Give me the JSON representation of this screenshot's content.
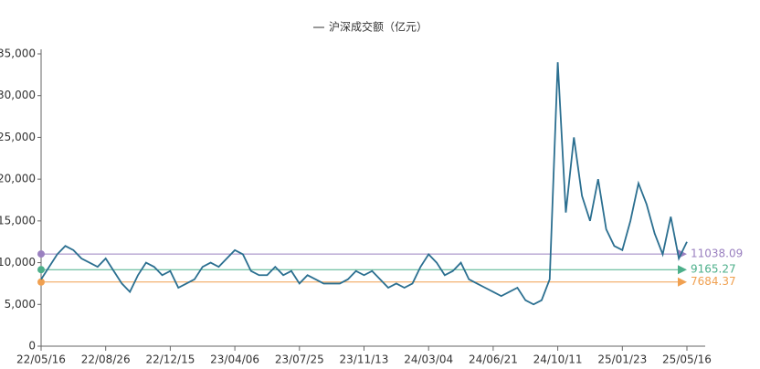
{
  "chart_data": {
    "type": "line",
    "series": [
      {
        "name": "沪深成交额（亿元）",
        "color": "#2b6f90",
        "values": [
          8000,
          9500,
          11000,
          12000,
          11500,
          10500,
          10000,
          9500,
          10500,
          9000,
          7500,
          6500,
          8500,
          10000,
          9500,
          8500,
          9000,
          7000,
          7500,
          8000,
          9500,
          10000,
          9500,
          10500,
          11500,
          11000,
          9000,
          8500,
          8500,
          9500,
          8500,
          9000,
          7500,
          8500,
          8000,
          7500,
          7500,
          7500,
          8000,
          9000,
          8500,
          9000,
          8000,
          7000,
          7500,
          7000,
          7500,
          9500,
          11000,
          10000,
          8500,
          9000,
          10000,
          8000,
          7500,
          7000,
          6500,
          6000,
          6500,
          7000,
          5500,
          5000,
          5500,
          8000,
          34000,
          16000,
          25000,
          18000,
          15000,
          20000,
          14000,
          12000,
          11500,
          15000,
          19500,
          17000,
          13500,
          11000,
          15500,
          10500,
          12500
        ]
      }
    ],
    "categories": [
      "22/05/16",
      null,
      null,
      null,
      null,
      null,
      null,
      null,
      "22/08/26",
      null,
      null,
      null,
      null,
      null,
      null,
      null,
      "22/12/15",
      null,
      null,
      null,
      null,
      null,
      null,
      null,
      "23/04/06",
      null,
      null,
      null,
      null,
      null,
      null,
      null,
      "23/07/25",
      null,
      null,
      null,
      null,
      null,
      null,
      null,
      "23/11/13",
      null,
      null,
      null,
      null,
      null,
      null,
      null,
      "24/03/04",
      null,
      null,
      null,
      null,
      null,
      null,
      null,
      "24/06/21",
      null,
      null,
      null,
      null,
      null,
      null,
      null,
      "24/10/11",
      null,
      null,
      null,
      null,
      null,
      null,
      null,
      "25/01/23",
      null,
      null,
      null,
      null,
      null,
      null,
      null,
      "25/05/16"
    ],
    "ylim": [
      0,
      35000
    ],
    "yticks": [
      0,
      {
        "value": 5000,
        "label": "5,000"
      },
      {
        "value": 10000,
        "label": "10,000"
      },
      {
        "value": 15000,
        "label": "15,000"
      },
      {
        "value": 20000,
        "label": "20,000"
      },
      {
        "value": 25000,
        "label": "25,000"
      },
      {
        "value": 30000,
        "label": "30,000"
      },
      {
        "value": 35000,
        "label": "35,000"
      }
    ],
    "grid": false,
    "mark_lines": [
      {
        "value": 11038.09,
        "color": "#9a80c0"
      },
      {
        "value": 9165.27,
        "color": "#4caf8a"
      },
      {
        "value": 7684.37,
        "color": "#f0a050"
      }
    ]
  }
}
